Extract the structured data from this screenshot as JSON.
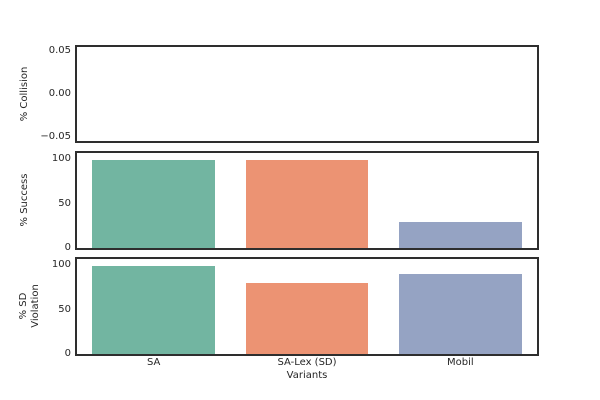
{
  "colors": {
    "spine": "#2e2e2e",
    "text": "#262626",
    "background": "#ffffff"
  },
  "chart_data": {
    "type": "bar",
    "title": "",
    "xlabel": "Variants",
    "grid": false,
    "legend": null,
    "bar_width_fraction": 0.8,
    "categories": [
      "SA",
      "SA-Lex (SD)",
      "Mobil"
    ],
    "palette": [
      "#72b5a1",
      "#ec9373",
      "#95a3c3"
    ],
    "panels": [
      {
        "name": "collision",
        "ylabel": "% Collision",
        "values": [
          0,
          0,
          0
        ],
        "ylim": [
          -0.0545,
          0.0545
        ],
        "yticks": [
          {
            "value": 0.05,
            "label": "0.05"
          },
          {
            "value": 0.0,
            "label": "0.00"
          },
          {
            "value": -0.05,
            "label": "−0.05"
          }
        ]
      },
      {
        "name": "success",
        "ylabel": "% Success",
        "values": [
          99,
          99,
          29
        ],
        "ylim": [
          0,
          107
        ],
        "yticks": [
          {
            "value": 100,
            "label": "100"
          },
          {
            "value": 50,
            "label": "50"
          },
          {
            "value": 0,
            "label": "0"
          }
        ]
      },
      {
        "name": "sd_violation",
        "ylabel": "% SD\nViolation",
        "values": [
          99,
          80,
          90
        ],
        "ylim": [
          0,
          107
        ],
        "yticks": [
          {
            "value": 100,
            "label": "100"
          },
          {
            "value": 50,
            "label": "50"
          },
          {
            "value": 0,
            "label": "0"
          }
        ]
      }
    ]
  }
}
